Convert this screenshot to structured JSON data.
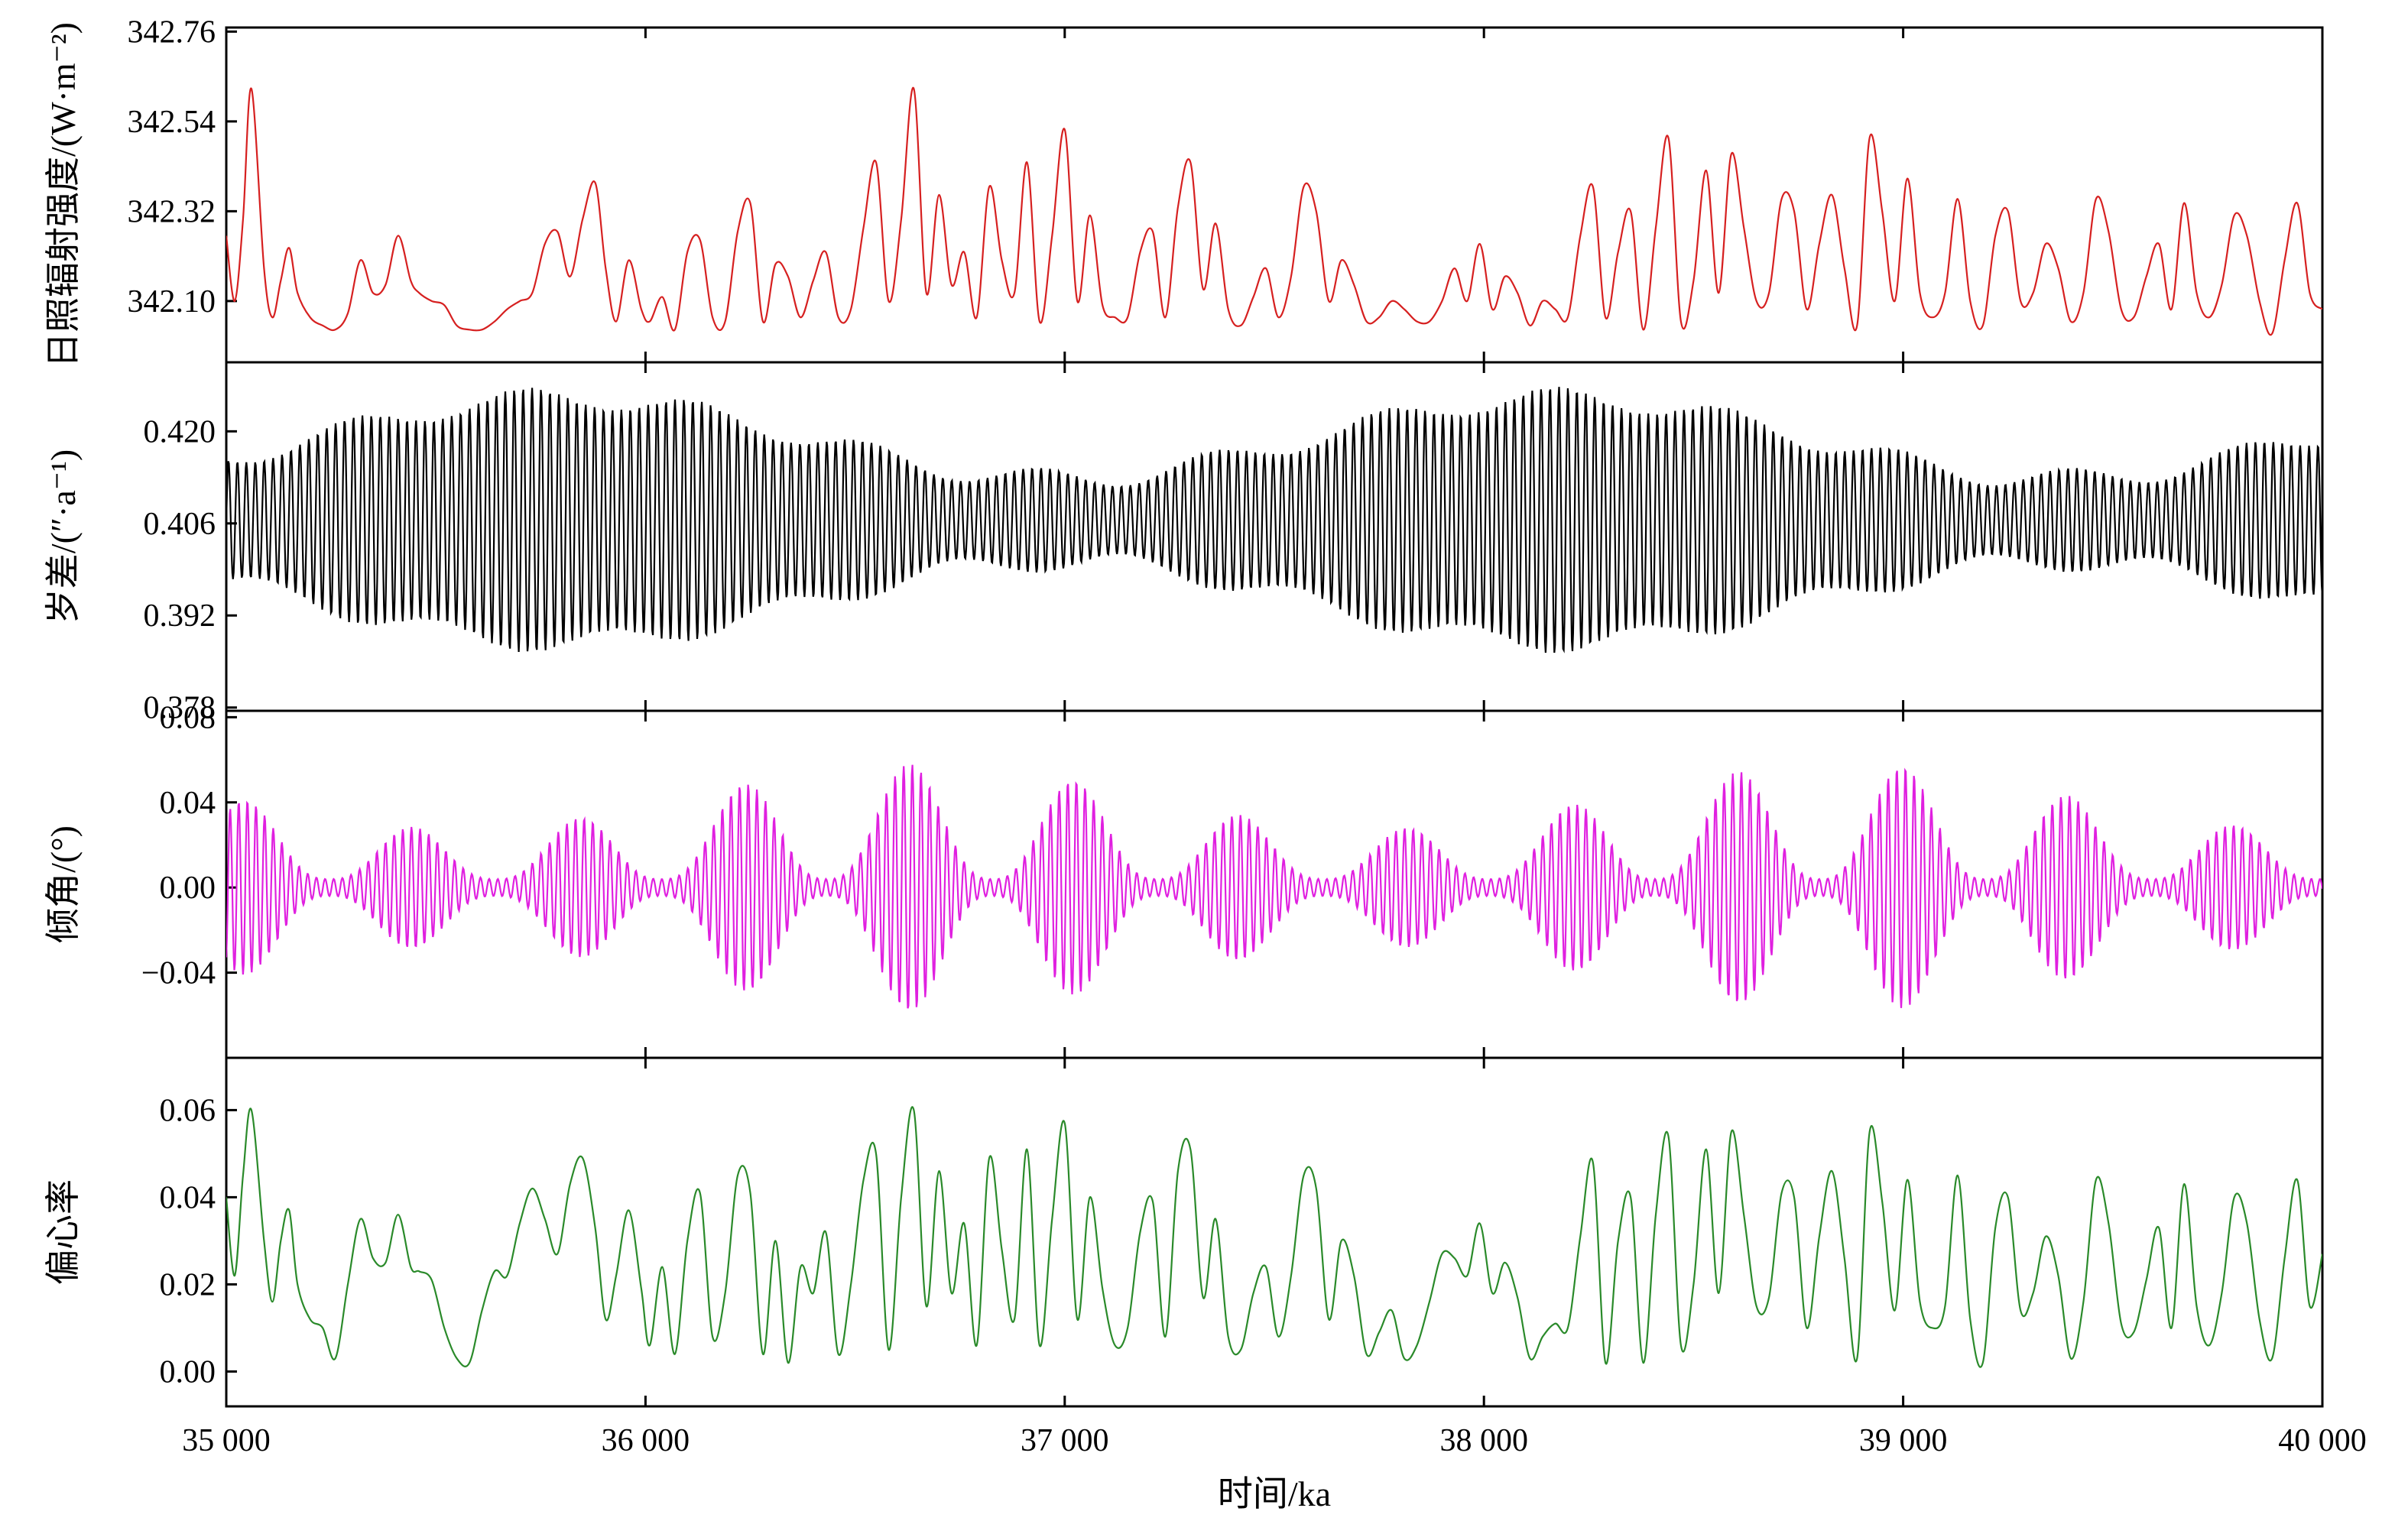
{
  "chart_data": {
    "type": "line",
    "xlabel": "时间/ka",
    "xlim": [
      35000,
      40000
    ],
    "x_ticks": [
      35000,
      36000,
      37000,
      38000,
      39000,
      40000
    ],
    "x_tick_labels": [
      "35 000",
      "36 000",
      "37 000",
      "38 000",
      "39 000",
      "40 000"
    ],
    "panels": [
      {
        "id": "insolation",
        "ylabel": "日照辐射强度/(W·m⁻²)",
        "color": "#d62020",
        "ylim": [
          341.95,
          342.77
        ],
        "y_ticks": [
          342.1,
          342.32,
          342.54,
          342.76
        ],
        "y_tick_labels": [
          "342.10",
          "342.32",
          "342.54",
          "342.76"
        ],
        "x": [
          35000,
          35020,
          35040,
          35060,
          35090,
          35110,
          35130,
          35150,
          35170,
          35200,
          35230,
          35260,
          35290,
          35320,
          35350,
          35380,
          35410,
          35440,
          35460,
          35490,
          35520,
          35550,
          35580,
          35610,
          35640,
          35670,
          35700,
          35730,
          35760,
          35790,
          35820,
          35850,
          35880,
          35905,
          35930,
          35960,
          35990,
          36010,
          36040,
          36070,
          36100,
          36130,
          36160,
          36190,
          36220,
          36250,
          36280,
          36310,
          36340,
          36370,
          36400,
          36430,
          36460,
          36490,
          36520,
          36550,
          36580,
          36610,
          36640,
          36670,
          36700,
          36730,
          36760,
          36790,
          36820,
          36850,
          36880,
          36910,
          36940,
          36970,
          37000,
          37030,
          37060,
          37090,
          37120,
          37150,
          37180,
          37210,
          37240,
          37270,
          37300,
          37330,
          37360,
          37390,
          37420,
          37450,
          37480,
          37510,
          37540,
          37570,
          37600,
          37630,
          37660,
          37690,
          37720,
          37750,
          37780,
          37810,
          37840,
          37870,
          37900,
          37930,
          37960,
          37990,
          38020,
          38050,
          38080,
          38110,
          38140,
          38170,
          38200,
          38230,
          38260,
          38290,
          38320,
          38350,
          38380,
          38410,
          38440,
          38470,
          38500,
          38530,
          38560,
          38590,
          38620,
          38650,
          38680,
          38710,
          38740,
          38770,
          38800,
          38830,
          38860,
          38890,
          38920,
          38950,
          38980,
          39010,
          39040,
          39070,
          39100,
          39130,
          39160,
          39190,
          39220,
          39250,
          39280,
          39310,
          39340,
          39370,
          39400,
          39430,
          39460,
          39490,
          39520,
          39550,
          39580,
          39610,
          39640,
          39670,
          39700,
          39730,
          39760,
          39790,
          39820,
          39850,
          39880,
          39910,
          39940,
          39970,
          40000
        ],
        "y": [
          342.26,
          342.1,
          342.3,
          342.62,
          342.18,
          342.06,
          342.15,
          342.23,
          342.12,
          342.06,
          342.04,
          342.03,
          342.07,
          342.2,
          342.12,
          342.14,
          342.26,
          342.15,
          342.12,
          342.1,
          342.09,
          342.04,
          342.03,
          342.03,
          342.05,
          342.08,
          342.1,
          342.12,
          342.24,
          342.27,
          342.16,
          342.3,
          342.39,
          342.18,
          342.05,
          342.2,
          342.08,
          342.05,
          342.11,
          342.03,
          342.22,
          342.25,
          342.06,
          342.05,
          342.27,
          342.34,
          342.05,
          342.19,
          342.16,
          342.06,
          342.15,
          342.22,
          342.06,
          342.08,
          342.28,
          342.44,
          342.1,
          342.3,
          342.62,
          342.12,
          342.36,
          342.14,
          342.22,
          342.06,
          342.38,
          342.2,
          342.12,
          342.44,
          342.05,
          342.26,
          342.52,
          342.1,
          342.31,
          342.09,
          342.06,
          342.06,
          342.22,
          342.27,
          342.06,
          342.33,
          342.44,
          342.13,
          342.29,
          342.08,
          342.04,
          342.11,
          342.18,
          342.06,
          342.16,
          342.38,
          342.32,
          342.1,
          342.2,
          342.14,
          342.05,
          342.06,
          342.1,
          342.08,
          342.05,
          342.05,
          342.1,
          342.18,
          342.1,
          342.24,
          342.08,
          342.16,
          342.12,
          342.04,
          342.1,
          342.08,
          342.06,
          342.26,
          342.38,
          342.06,
          342.22,
          342.32,
          342.03,
          342.28,
          342.5,
          342.05,
          342.15,
          342.42,
          342.12,
          342.46,
          342.28,
          342.1,
          342.12,
          342.35,
          342.32,
          342.08,
          342.24,
          342.36,
          342.18,
          342.04,
          342.5,
          342.32,
          342.1,
          342.4,
          342.12,
          342.06,
          342.12,
          342.35,
          342.1,
          342.04,
          342.26,
          342.32,
          342.1,
          342.12,
          342.24,
          342.18,
          342.05,
          342.12,
          342.35,
          342.27,
          342.08,
          342.06,
          342.16,
          342.24,
          342.08,
          342.34,
          342.12,
          342.06,
          342.14,
          342.31,
          342.26,
          342.1,
          342.02,
          342.2,
          342.34,
          342.12,
          342.08
        ]
      },
      {
        "id": "precession",
        "ylabel": "岁差/(″·a⁻¹)",
        "color": "#000000",
        "ylim": [
          0.3775,
          0.4305
        ],
        "y_ticks": [
          0.378,
          0.392,
          0.406,
          0.42
        ],
        "y_tick_labels": [
          "0.378",
          "0.392",
          "0.406",
          "0.420"
        ],
        "x": [
          35000,
          40000
        ],
        "y": [
          0.4065,
          0.4065
        ]
      },
      {
        "id": "obliquity",
        "ylabel": "倾角/(°)",
        "color": "#e020e0",
        "ylim": [
          -0.08,
          0.083
        ],
        "y_ticks": [
          -0.04,
          0.0,
          0.04,
          0.08
        ],
        "y_tick_labels": [
          "−0.04",
          "0.00",
          "0.04",
          "0.08"
        ],
        "x": [
          35000,
          40000
        ],
        "y": [
          0,
          0
        ]
      },
      {
        "id": "eccentricity",
        "ylabel": "偏心率",
        "color": "#2a8a2a",
        "ylim": [
          -0.008,
          0.072
        ],
        "y_ticks": [
          0.0,
          0.02,
          0.04,
          0.06
        ],
        "y_tick_labels": [
          "0.00",
          "0.02",
          "0.04",
          "0.06"
        ],
        "x": [
          35000,
          35020,
          35040,
          35060,
          35090,
          35110,
          35130,
          35150,
          35170,
          35200,
          35230,
          35260,
          35290,
          35320,
          35350,
          35380,
          35410,
          35440,
          35460,
          35490,
          35520,
          35550,
          35580,
          35610,
          35640,
          35670,
          35700,
          35730,
          35760,
          35790,
          35820,
          35850,
          35880,
          35905,
          35930,
          35960,
          35990,
          36010,
          36040,
          36070,
          36100,
          36130,
          36160,
          36190,
          36220,
          36250,
          36280,
          36310,
          36340,
          36370,
          36400,
          36430,
          36460,
          36490,
          36520,
          36550,
          36580,
          36610,
          36640,
          36670,
          36700,
          36730,
          36760,
          36790,
          36820,
          36850,
          36880,
          36910,
          36940,
          36970,
          37000,
          37030,
          37060,
          37090,
          37120,
          37150,
          37180,
          37210,
          37240,
          37270,
          37300,
          37330,
          37360,
          37390,
          37420,
          37450,
          37480,
          37510,
          37540,
          37570,
          37600,
          37630,
          37660,
          37690,
          37720,
          37750,
          37780,
          37810,
          37840,
          37870,
          37900,
          37930,
          37960,
          37990,
          38020,
          38050,
          38080,
          38110,
          38140,
          38170,
          38200,
          38230,
          38260,
          38290,
          38320,
          38350,
          38380,
          38410,
          38440,
          38470,
          38500,
          38530,
          38560,
          38590,
          38620,
          38650,
          38680,
          38710,
          38740,
          38770,
          38800,
          38830,
          38860,
          38890,
          38920,
          38950,
          38980,
          39010,
          39040,
          39070,
          39100,
          39130,
          39160,
          39190,
          39220,
          39250,
          39280,
          39310,
          39340,
          39370,
          39400,
          39430,
          39460,
          39490,
          39520,
          39550,
          39580,
          39610,
          39640,
          39670,
          39700,
          39730,
          39760,
          39790,
          39820,
          39850,
          39880,
          39910,
          39940,
          39970,
          40000
        ],
        "y": [
          0.04,
          0.022,
          0.045,
          0.06,
          0.03,
          0.016,
          0.03,
          0.037,
          0.02,
          0.012,
          0.01,
          0.003,
          0.02,
          0.035,
          0.026,
          0.025,
          0.036,
          0.024,
          0.023,
          0.021,
          0.01,
          0.003,
          0.002,
          0.014,
          0.023,
          0.022,
          0.034,
          0.042,
          0.035,
          0.027,
          0.043,
          0.049,
          0.033,
          0.012,
          0.022,
          0.037,
          0.019,
          0.006,
          0.024,
          0.004,
          0.03,
          0.041,
          0.008,
          0.018,
          0.045,
          0.041,
          0.004,
          0.03,
          0.002,
          0.024,
          0.018,
          0.032,
          0.004,
          0.02,
          0.044,
          0.05,
          0.005,
          0.04,
          0.06,
          0.015,
          0.046,
          0.018,
          0.034,
          0.006,
          0.049,
          0.028,
          0.012,
          0.051,
          0.006,
          0.035,
          0.057,
          0.012,
          0.04,
          0.019,
          0.006,
          0.01,
          0.032,
          0.039,
          0.008,
          0.046,
          0.051,
          0.017,
          0.035,
          0.008,
          0.005,
          0.018,
          0.024,
          0.008,
          0.022,
          0.045,
          0.042,
          0.012,
          0.03,
          0.022,
          0.004,
          0.009,
          0.014,
          0.003,
          0.006,
          0.016,
          0.027,
          0.026,
          0.022,
          0.034,
          0.018,
          0.025,
          0.017,
          0.003,
          0.008,
          0.011,
          0.01,
          0.031,
          0.048,
          0.002,
          0.03,
          0.04,
          0.002,
          0.036,
          0.054,
          0.006,
          0.02,
          0.051,
          0.018,
          0.055,
          0.036,
          0.015,
          0.017,
          0.041,
          0.04,
          0.01,
          0.031,
          0.046,
          0.026,
          0.003,
          0.055,
          0.039,
          0.014,
          0.044,
          0.016,
          0.01,
          0.015,
          0.045,
          0.012,
          0.002,
          0.033,
          0.04,
          0.014,
          0.018,
          0.031,
          0.022,
          0.003,
          0.016,
          0.044,
          0.034,
          0.011,
          0.009,
          0.021,
          0.033,
          0.01,
          0.043,
          0.015,
          0.006,
          0.018,
          0.04,
          0.034,
          0.012,
          0.003,
          0.026,
          0.044,
          0.015,
          0.027
        ]
      }
    ]
  }
}
